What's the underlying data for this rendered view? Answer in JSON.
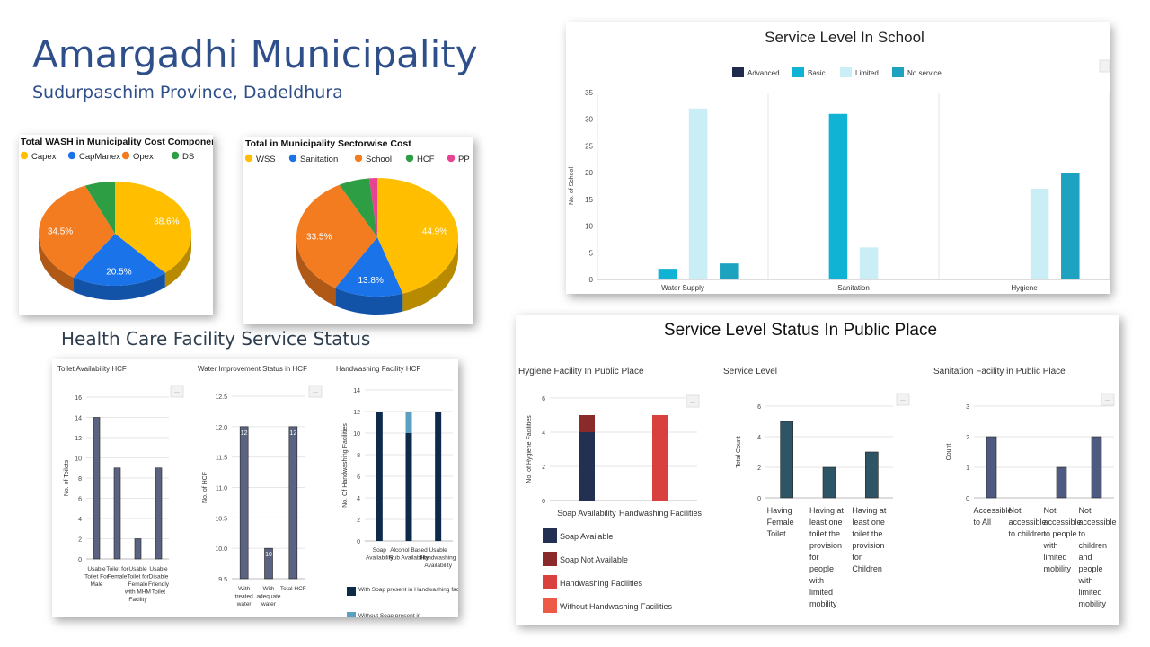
{
  "header": {
    "title": "Amargadhi Municipality",
    "subtitle": "Sudurpaschim Province, Dadeldhura",
    "hcf_heading": "Health Care Facility Service Status"
  },
  "menu_glyph": "...",
  "chart_data": [
    {
      "id": "cost_component",
      "type": "pie",
      "title": "Total WASH in Municipality Cost Component",
      "legend_position": "top",
      "categories": [
        "Capex",
        "CapManex",
        "Opex",
        "DS"
      ],
      "values": [
        38.6,
        20.5,
        34.5,
        6.4
      ],
      "value_labels": [
        "38.6%",
        "20.5%",
        "34.5%",
        ""
      ],
      "colors": [
        "#ffbf00",
        "#1a73e8",
        "#f47c20",
        "#2e9e44"
      ]
    },
    {
      "id": "sector_cost",
      "type": "pie",
      "title": "Total in Municipality Sectorwise Cost",
      "legend_position": "top",
      "categories": [
        "WSS",
        "Sanitation",
        "School",
        "HCF",
        "PP"
      ],
      "values": [
        44.9,
        13.8,
        33.5,
        6.2,
        1.6
      ],
      "value_labels": [
        "44.9%",
        "13.8%",
        "33.5%",
        "",
        ""
      ],
      "colors": [
        "#ffbf00",
        "#1a73e8",
        "#f47c20",
        "#2e9e44",
        "#e84393"
      ]
    },
    {
      "id": "school_service",
      "type": "bar",
      "title": "Service Level In School",
      "ylabel": "No. of School",
      "ylim": [
        0,
        35
      ],
      "yticks": [
        0,
        5,
        10,
        15,
        20,
        25,
        30,
        35
      ],
      "legend_position": "top",
      "categories": [
        "Water Supply",
        "Sanitation",
        "Hygiene"
      ],
      "series": [
        {
          "name": "Advanced",
          "color": "#1f2a4c",
          "values": [
            0,
            0,
            0
          ]
        },
        {
          "name": "Basic",
          "color": "#11b3d4",
          "values": [
            2,
            31,
            0
          ]
        },
        {
          "name": "Limited",
          "color": "#c9eef6",
          "values": [
            32,
            6,
            17
          ]
        },
        {
          "name": "No service",
          "color": "#1da2c0",
          "values": [
            3,
            0,
            20
          ]
        }
      ]
    },
    {
      "id": "hcf_toilet",
      "type": "bar",
      "title": "Toilet Availability HCF",
      "ylabel": "No. of Toilets",
      "ylim": [
        0,
        16
      ],
      "yticks": [
        0,
        2,
        4,
        6,
        8,
        10,
        12,
        14,
        16
      ],
      "categories": [
        [
          "Usable",
          "Toilet For",
          "Male"
        ],
        [
          "Toilet for",
          "Female"
        ],
        [
          "Usable",
          "Toilet for",
          "Female",
          "with MHM",
          "Facility"
        ],
        [
          "Usable",
          "Disable",
          "Friendly",
          "Toilet"
        ]
      ],
      "values": [
        14,
        9,
        2,
        9
      ],
      "color": "#5a6482"
    },
    {
      "id": "hcf_water",
      "type": "bar",
      "title": "Water Improvement Status in HCF",
      "ylabel": "No. of HCF",
      "ylim": [
        9.5,
        12.5
      ],
      "yticks": [
        9.5,
        10.0,
        10.5,
        11.0,
        11.5,
        12.0,
        12.5
      ],
      "ytick_labels": [
        "9.5",
        "10.0",
        "10.5",
        "11.0",
        "11.5",
        "12.0",
        "12.5"
      ],
      "categories": [
        [
          "With",
          "treated",
          "water"
        ],
        [
          "With",
          "adequate",
          "water"
        ],
        [
          "Total HCF"
        ]
      ],
      "values": [
        12,
        10,
        12
      ],
      "value_labels": [
        "12",
        "10",
        "12"
      ],
      "color": "#5a6482"
    },
    {
      "id": "hcf_handwash",
      "type": "bar",
      "title": "Handwashing Facility HCF",
      "ylabel": "No. Of Handwashing Facilities",
      "ylim": [
        0,
        14
      ],
      "yticks": [
        0,
        2,
        4,
        6,
        8,
        10,
        12,
        14
      ],
      "categories": [
        [
          "Soap",
          "Availability"
        ],
        [
          "Alcohol Based",
          "Rub Availability"
        ],
        [
          "Usable",
          "Handwashing",
          "Availability"
        ]
      ],
      "series": [
        {
          "name": "With Soap present in Handwashing facility",
          "color": "#0d2a4a",
          "values": [
            12,
            10,
            12
          ]
        },
        {
          "name": "Without Soap present in",
          "color": "#5b9fc2",
          "values": [
            0,
            2,
            0
          ]
        }
      ],
      "legend_position": "bottom"
    },
    {
      "id": "pp_panel",
      "type": "bar",
      "title": "Service Level Status In Public Place"
    },
    {
      "id": "pp_hygiene",
      "type": "bar",
      "title": "Hygiene Facility In Public Place",
      "ylabel": "No. of Hygiene Facilities",
      "ylim": [
        0,
        6
      ],
      "yticks": [
        0,
        2,
        4,
        6
      ],
      "categories": [
        [
          "Soap Availability"
        ],
        [
          "Handwashing Facilities"
        ]
      ],
      "series": [
        {
          "name": "Soap Available",
          "color": "#243052",
          "values": [
            4,
            0
          ]
        },
        {
          "name": "Soap Not Available",
          "color": "#8b2a2a",
          "values": [
            1,
            0
          ]
        },
        {
          "name": "Handwashing Facilities",
          "color": "#d9413e",
          "values": [
            0,
            5
          ]
        },
        {
          "name": "Without Handwashing Facilities",
          "color": "#ee5a48",
          "values": [
            0,
            0
          ]
        }
      ],
      "legend_position": "bottom"
    },
    {
      "id": "pp_service",
      "type": "bar",
      "title": "Service Level",
      "ylabel": "Total Count",
      "ylim": [
        0,
        6
      ],
      "yticks": [
        0,
        2,
        4,
        6
      ],
      "categories": [
        [
          "Having",
          "Female",
          "Toilet"
        ],
        [
          "Having at",
          "least one",
          "toilet the",
          "provision",
          "for",
          "people",
          "with",
          "limited",
          "mobility"
        ],
        [
          "Having at",
          "least one",
          "toilet the",
          "provision",
          "for",
          "Children"
        ]
      ],
      "values": [
        5,
        2,
        3
      ],
      "color": "#2e5566"
    },
    {
      "id": "pp_sanitation",
      "type": "bar",
      "title": "Sanitation Facility in Public Place",
      "ylabel": "Count",
      "ylim": [
        0,
        3
      ],
      "yticks": [
        0,
        1,
        2,
        3
      ],
      "categories": [
        [
          "Accessible",
          "to All"
        ],
        [
          "Not",
          "accessible",
          "to children"
        ],
        [
          "Not",
          "accessible",
          "to people",
          "with",
          "limited",
          "mobility"
        ],
        [
          "Not",
          "accessible",
          "to",
          "children",
          "and",
          "people",
          "with",
          "limited",
          "mobility"
        ]
      ],
      "values": [
        2,
        0,
        1,
        2
      ],
      "color": "#4f5a80"
    }
  ]
}
